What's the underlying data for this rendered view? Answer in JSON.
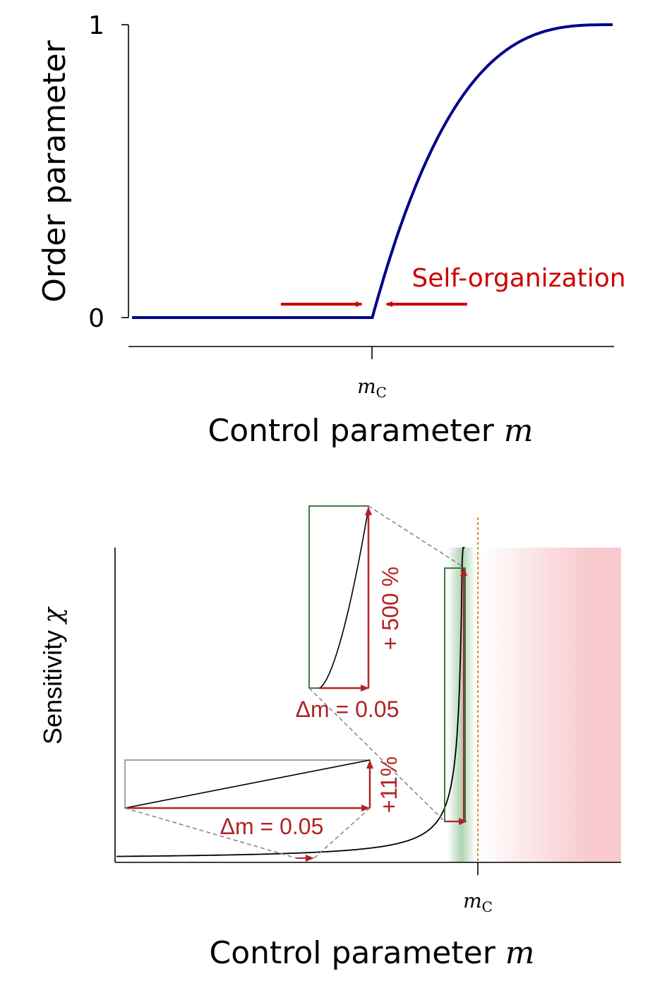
{
  "chart_data": [
    {
      "type": "line",
      "ylabel": "Order parameter",
      "xlabel_text": "Control parameter ",
      "xlabel_var": "m",
      "yticks": [
        {
          "value": 0,
          "label": "0"
        },
        {
          "value": 1,
          "label": "1"
        }
      ],
      "xtick": {
        "main": "m",
        "sub": "C"
      },
      "annotation": "Self-organization",
      "curve_color": "#00008b",
      "annotation_color": "#cc0000",
      "series": [
        {
          "x": [
            0.0,
            0.25,
            0.5,
            0.55,
            0.6,
            0.65,
            0.7,
            0.75,
            0.8,
            0.85,
            0.9,
            0.95,
            1.0
          ],
          "values": [
            0,
            0,
            0,
            0.35,
            0.58,
            0.73,
            0.83,
            0.9,
            0.94,
            0.97,
            0.985,
            0.995,
            1.0
          ]
        }
      ]
    },
    {
      "type": "line",
      "ylabel_text": "Sensitivity ",
      "ylabel_var": "χ",
      "xlabel_text": "Control parameter ",
      "xlabel_var": "m",
      "xtick": {
        "main": "m",
        "sub": "C"
      },
      "annotations": {
        "delta_small": "Δm = 0.05",
        "pct_small": "+11%",
        "delta_large": "Δm = 0.05",
        "pct_large": "+ 500 %"
      },
      "colors": {
        "curve": "#000000",
        "annotation": "#b22222",
        "inset_box": "#2e6b33",
        "critical_line": "#cc7a00",
        "ordered_region": "#f8c8cc",
        "critical_band": "#6aaf72"
      }
    }
  ]
}
